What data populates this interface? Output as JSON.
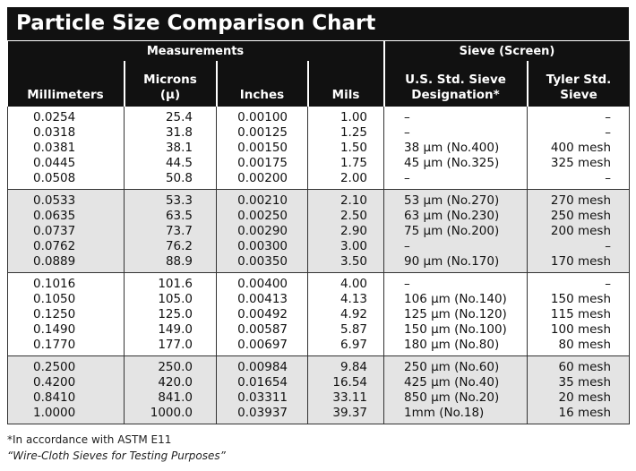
{
  "title": "Particle Size Comparison Chart",
  "table": {
    "group_headers": [
      "Measurements",
      "Sieve (Screen)"
    ],
    "columns": [
      "Millimeters",
      "Microns\n(μ)",
      "Inches",
      "Mils",
      "U.S. Std. Sieve\nDesignation*",
      "Tyler Std.\nSieve"
    ],
    "row_groups": [
      [
        [
          "0.0254",
          "25.4",
          "0.00100",
          "1.00",
          "–",
          "–"
        ],
        [
          "0.0318",
          "31.8",
          "0.00125",
          "1.25",
          "–",
          "–"
        ],
        [
          "0.0381",
          "38.1",
          "0.00150",
          "1.50",
          "38 μm (No.400)",
          "400 mesh"
        ],
        [
          "0.0445",
          "44.5",
          "0.00175",
          "1.75",
          "45 μm (No.325)",
          "325 mesh"
        ],
        [
          "0.0508",
          "50.8",
          "0.00200",
          "2.00",
          "–",
          "–"
        ]
      ],
      [
        [
          "0.0533",
          "53.3",
          "0.00210",
          "2.10",
          "53 μm (No.270)",
          "270 mesh"
        ],
        [
          "0.0635",
          "63.5",
          "0.00250",
          "2.50",
          "63 μm (No.230)",
          "250 mesh"
        ],
        [
          "0.0737",
          "73.7",
          "0.00290",
          "2.90",
          "75 μm (No.200)",
          "200 mesh"
        ],
        [
          "0.0762",
          "76.2",
          "0.00300",
          "3.00",
          "–",
          "–"
        ],
        [
          "0.0889",
          "88.9",
          "0.00350",
          "3.50",
          "90 μm (No.170)",
          "170 mesh"
        ]
      ],
      [
        [
          "0.1016",
          "101.6",
          "0.00400",
          "4.00",
          "–",
          "–"
        ],
        [
          "0.1050",
          "105.0",
          "0.00413",
          "4.13",
          "106 μm (No.140)",
          "150 mesh"
        ],
        [
          "0.1250",
          "125.0",
          "0.00492",
          "4.92",
          "125 μm (No.120)",
          "115 mesh"
        ],
        [
          "0.1490",
          "149.0",
          "0.00587",
          "5.87",
          "150 μm (No.100)",
          "100 mesh"
        ],
        [
          "0.1770",
          "177.0",
          "0.00697",
          "6.97",
          "180 μm (No.80)",
          "80 mesh"
        ]
      ],
      [
        [
          "0.2500",
          "250.0",
          "0.00984",
          "9.84",
          "250 μm (No.60)",
          "60 mesh"
        ],
        [
          "0.4200",
          "420.0",
          "0.01654",
          "16.54",
          "425 μm (No.40)",
          "35 mesh"
        ],
        [
          "0.8410",
          "841.0",
          "0.03311",
          "33.11",
          "850 μm (No.20)",
          "20 mesh"
        ],
        [
          "1.0000",
          "1000.0",
          "0.03937",
          "39.37",
          "1mm (No.18)",
          "16 mesh"
        ]
      ]
    ]
  },
  "footnotes": [
    "*In accordance with ASTM E11",
    "“Wire-Cloth Sieves for Testing Purposes”"
  ]
}
